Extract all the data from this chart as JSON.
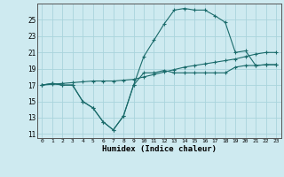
{
  "xlabel": "Humidex (Indice chaleur)",
  "xlim": [
    -0.5,
    23.5
  ],
  "ylim": [
    10.5,
    27
  ],
  "yticks": [
    11,
    13,
    15,
    17,
    19,
    21,
    23,
    25
  ],
  "xticks": [
    0,
    1,
    2,
    3,
    4,
    5,
    6,
    7,
    8,
    9,
    10,
    11,
    12,
    13,
    14,
    15,
    16,
    17,
    18,
    19,
    20,
    21,
    22,
    23
  ],
  "xtick_labels": [
    "0",
    "1",
    "2",
    "3",
    "4",
    "5",
    "6",
    "7",
    "8",
    "9",
    "10",
    "11",
    "12",
    "13",
    "14",
    "15",
    "16",
    "17",
    "18",
    "19",
    "20",
    "21",
    "22",
    "23"
  ],
  "background_color": "#ceeaf0",
  "grid_color": "#aad4dc",
  "line_color": "#1a6b6b",
  "series": [
    {
      "x": [
        0,
        1,
        2,
        3,
        4,
        5,
        6,
        7,
        8,
        9,
        10,
        11,
        12,
        13,
        14,
        15,
        16,
        17,
        18,
        19,
        20,
        21,
        22,
        23
      ],
      "y": [
        17,
        17.2,
        17,
        17,
        15,
        14.2,
        12.5,
        11.5,
        13.2,
        17,
        18.5,
        18.5,
        18.8,
        18.5,
        18.5,
        18.5,
        18.5,
        18.5,
        18.5,
        19.2,
        19.4,
        19.4,
        19.5,
        19.5
      ]
    },
    {
      "x": [
        0,
        1,
        2,
        3,
        4,
        5,
        6,
        7,
        8,
        9,
        10,
        11,
        12,
        13,
        14,
        15,
        16,
        17,
        18,
        19,
        20,
        21,
        22,
        23
      ],
      "y": [
        17,
        17.2,
        17,
        17,
        15,
        14.2,
        12.5,
        11.5,
        13.2,
        17,
        20.5,
        22.5,
        24.5,
        26.2,
        26.4,
        26.2,
        26.2,
        25.5,
        24.7,
        21.0,
        21.2,
        19.4,
        19.5,
        19.5
      ]
    },
    {
      "x": [
        0,
        1,
        2,
        3,
        4,
        5,
        6,
        7,
        8,
        9,
        10,
        11,
        12,
        13,
        14,
        15,
        16,
        17,
        18,
        19,
        20,
        21,
        22,
        23
      ],
      "y": [
        17,
        17.1,
        17.2,
        17.3,
        17.4,
        17.5,
        17.5,
        17.5,
        17.6,
        17.7,
        18.0,
        18.3,
        18.6,
        18.9,
        19.2,
        19.4,
        19.6,
        19.8,
        20.0,
        20.2,
        20.5,
        20.8,
        21.0,
        21.0
      ]
    }
  ]
}
